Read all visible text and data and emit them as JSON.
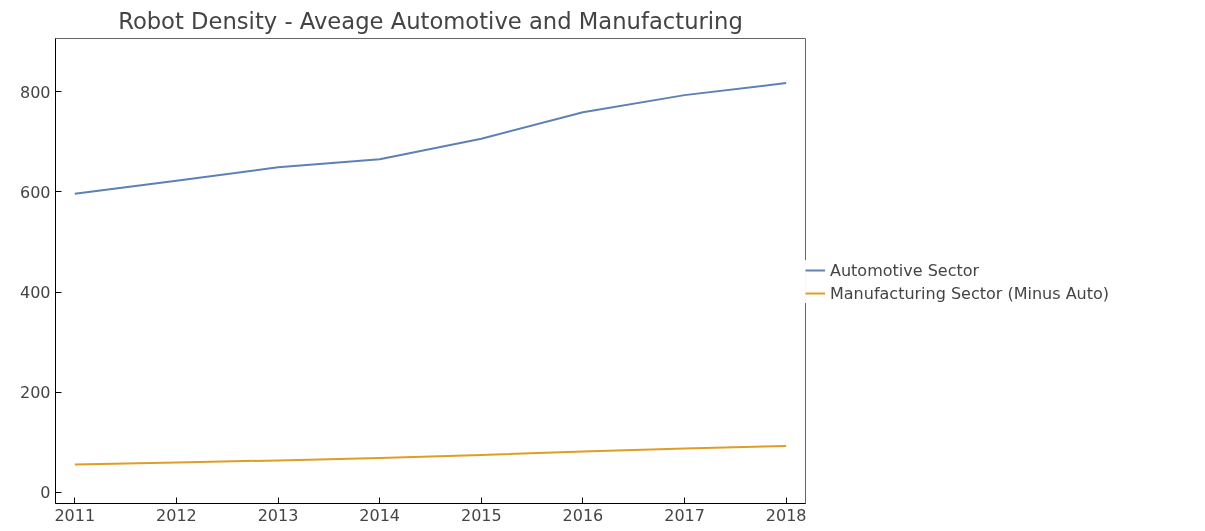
{
  "chart_data": {
    "type": "line",
    "title": "Robot Density - Aveage Automotive and Manufacturing",
    "x": [
      2011,
      2012,
      2013,
      2014,
      2015,
      2016,
      2017,
      2018
    ],
    "series": [
      {
        "name": "Automotive Sector",
        "color": "#5e81b5",
        "values": [
          596,
          622,
          649,
          665,
          706,
          759,
          793,
          817
        ]
      },
      {
        "name": "Manufacturing Sector (Minus Auto)",
        "color": "#e19c24",
        "values": [
          56,
          60,
          64,
          69,
          75,
          82,
          88,
          93
        ]
      }
    ],
    "xlim": [
      2010.81,
      2018.19
    ],
    "xticks": [
      2011,
      2012,
      2013,
      2014,
      2015,
      2016,
      2017,
      2018
    ],
    "ylim": [
      -22,
      906
    ],
    "yticks": [
      0,
      200,
      400,
      600,
      800
    ],
    "grid": false,
    "legend": "right",
    "marker": "none",
    "line_style": "solid"
  }
}
